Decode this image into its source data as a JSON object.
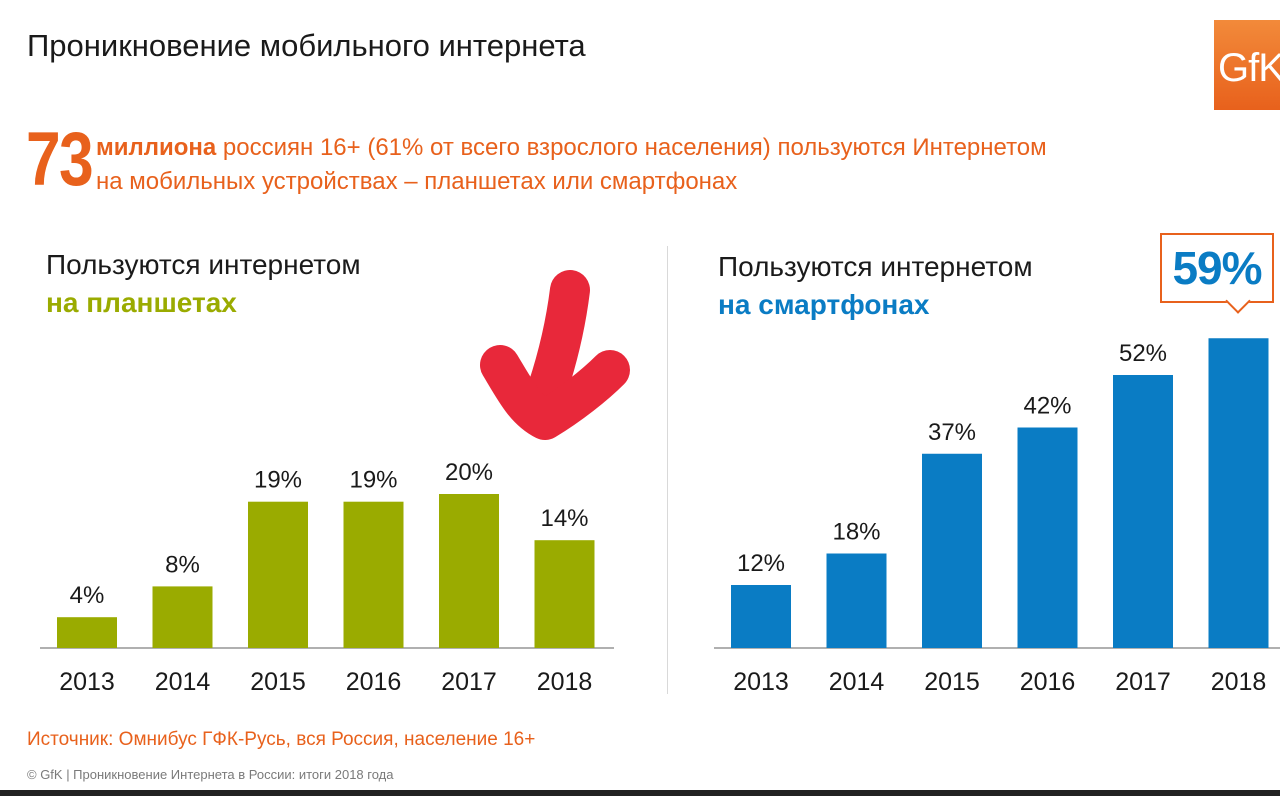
{
  "title": "Проникновение мобильного интернета",
  "logo_text": "GfK",
  "headline": {
    "number": "73",
    "bold_text": "миллиона",
    "line1_rest": " россиян 16+ (61% от всего взрослого населения) пользуются Интернетом",
    "line2": "на мобильных устройствах – планшетах или смартфонах"
  },
  "colors": {
    "accent_orange": "#e8611c",
    "tablet_green": "#9aab00",
    "smartphone_blue": "#0a7cc4",
    "annotation_red": "#e8283a"
  },
  "callout": {
    "text": "59%"
  },
  "annotation": {
    "icon": "red-down-arrow-icon"
  },
  "chart_data": [
    {
      "type": "bar",
      "title_line1": "Пользуются интернетом",
      "title_line2": "на планшетах",
      "categories": [
        "2013",
        "2014",
        "2015",
        "2016",
        "2017",
        "2018"
      ],
      "values": [
        4,
        8,
        19,
        19,
        20,
        14
      ],
      "value_labels": [
        "4%",
        "8%",
        "19%",
        "19%",
        "20%",
        "14%"
      ],
      "ylim": [
        0,
        35
      ],
      "color": "#9aab00",
      "grid": false
    },
    {
      "type": "bar",
      "title_line1": "Пользуются интернетом",
      "title_line2": "на смартфонах",
      "categories": [
        "2013",
        "2014",
        "2015",
        "2016",
        "2017",
        "2018"
      ],
      "values": [
        12,
        18,
        37,
        42,
        52,
        59
      ],
      "value_labels": [
        "12%",
        "18%",
        "37%",
        "42%",
        "52%",
        ""
      ],
      "ylim": [
        0,
        65
      ],
      "color": "#0a7cc4",
      "grid": false
    }
  ],
  "source": "Источник: Омнибус ГФК-Русь, вся Россия, население 16+",
  "footer": "© GfK | Проникновение Интернета в России: итоги 2018 года"
}
